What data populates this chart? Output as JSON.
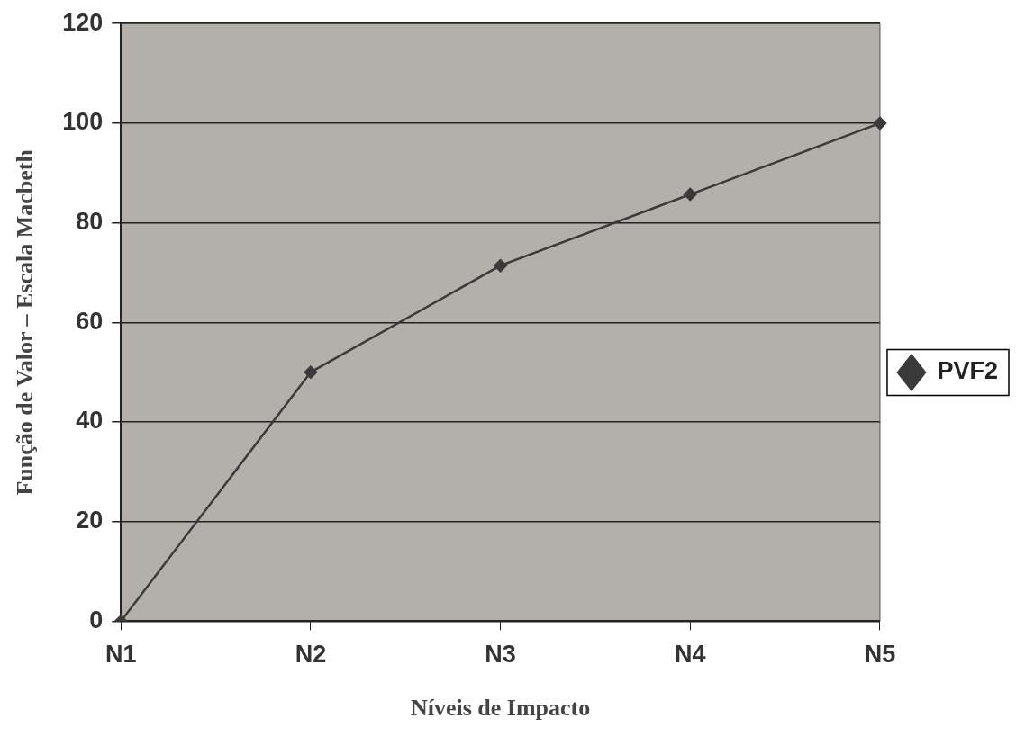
{
  "chart_data": {
    "type": "line",
    "xlabel": "Níveis de Impacto",
    "ylabel": "Função de Valor – Escala Macbeth",
    "categories": [
      "N1",
      "N2",
      "N3",
      "N4",
      "N5"
    ],
    "series": [
      {
        "name": "PVF2",
        "color": "#3a3a3a",
        "values": [
          0,
          50,
          71.4,
          85.7,
          100
        ]
      }
    ],
    "ylim": [
      0,
      120
    ],
    "yticks": [
      0,
      20,
      40,
      60,
      80,
      100,
      120
    ],
    "grid": "y",
    "legend": "right",
    "marker": "diamond",
    "line_style": "solid"
  }
}
